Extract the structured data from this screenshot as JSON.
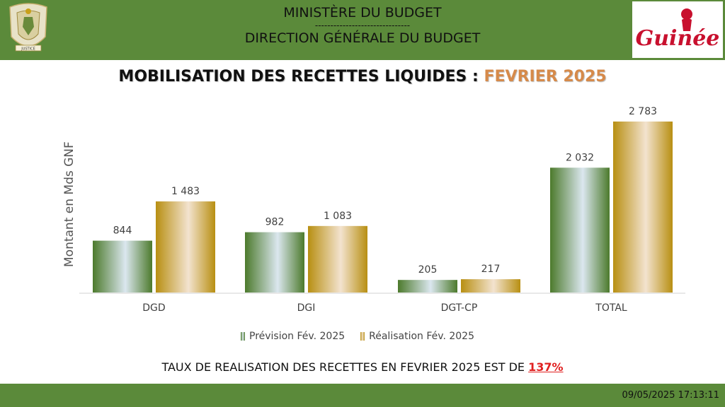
{
  "header": {
    "line1": "MINISTÈRE DU BUDGET",
    "separator": "-------------------------------",
    "line2": "DIRECTION GÉNÉRALE DU BUDGET",
    "logo_text": "Guinée",
    "emblem_text": "JUSTICE"
  },
  "title": {
    "main": "MOBILISATION DES RECETTES LIQUIDES : ",
    "highlight": "FEVRIER 2025"
  },
  "chart_data": {
    "type": "bar",
    "categories": [
      "DGD",
      "DGI",
      "DGT-CP",
      "TOTAL"
    ],
    "series": [
      {
        "name": "Prévision Fév. 2025",
        "values": [
          844,
          982,
          205,
          2032
        ],
        "labels": [
          "844",
          "982",
          "205",
          "2 032"
        ]
      },
      {
        "name": "Réalisation Fév. 2025",
        "values": [
          1483,
          1083,
          217,
          2783
        ],
        "labels": [
          "1 483",
          "1 083",
          "217",
          "2 783"
        ]
      }
    ],
    "ylabel": "Montant en Mds GNF",
    "ylim": [
      0,
      2783
    ],
    "legend_position": "bottom",
    "grid": false
  },
  "footer": {
    "text": "TAUX DE REALISATION DES RECETTES EN FEVRIER 2025 EST DE ",
    "rate": "137%",
    "timestamp": "09/05/2025 17:13:11"
  },
  "colors": {
    "header_green": "#5b8a3a",
    "series_green": "#5a8a3c",
    "series_gold": "#c9a019",
    "highlight": "#d68a4a",
    "rate_red": "#e02020"
  }
}
